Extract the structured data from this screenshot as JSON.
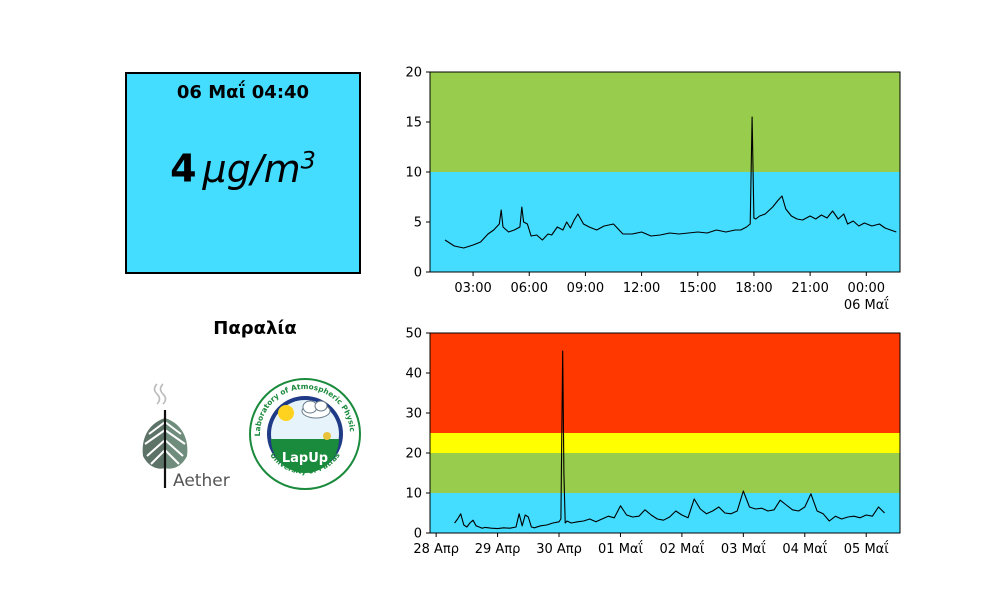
{
  "reading": {
    "timestamp": "06 Μαΐ 04:40",
    "value": "4",
    "unit_base": "μg/m",
    "unit_exp": "3",
    "box_color": "#44dcff"
  },
  "station": {
    "name": "Παραλία"
  },
  "logos": {
    "aether": "Aether",
    "lapup_center": "LapUp",
    "lapup_top_ring": "Laboratory of Atmospheric Physics",
    "lapup_bottom_ring": "University of Patras"
  },
  "colors": {
    "band_blue": "#44dcff",
    "band_green": "#98cc4c",
    "band_yellow": "#ffff00",
    "band_red": "#ff3800",
    "line": "#000000"
  },
  "chart_data": [
    {
      "type": "line",
      "id": "last-24h",
      "ylim": [
        0,
        20
      ],
      "yticks": [
        0,
        5,
        10,
        15,
        20
      ],
      "bands": [
        {
          "from": 0,
          "to": 10,
          "color": "#44dcff"
        },
        {
          "from": 10,
          "to": 20,
          "color": "#98cc4c"
        }
      ],
      "xlim": [
        0.7,
        25.8
      ],
      "xticks": [
        {
          "x": 3,
          "label": "03:00"
        },
        {
          "x": 6,
          "label": "06:00"
        },
        {
          "x": 9,
          "label": "09:00"
        },
        {
          "x": 12,
          "label": "12:00"
        },
        {
          "x": 15,
          "label": "15:00"
        },
        {
          "x": 18,
          "label": "18:00"
        },
        {
          "x": 21,
          "label": "21:00"
        },
        {
          "x": 24,
          "label": "00:00",
          "sub": "06 Μαΐ"
        }
      ],
      "series": [
        {
          "x": [
            1.5,
            2.0,
            2.5,
            3.0,
            3.4,
            3.8,
            4.1,
            4.4,
            4.5,
            4.6,
            4.9,
            5.2,
            5.5,
            5.6,
            5.7,
            5.9,
            6.1,
            6.4,
            6.7,
            7.0,
            7.2,
            7.5,
            7.8,
            8.0,
            8.2,
            8.4,
            8.6,
            8.9,
            9.2,
            9.6,
            10.0,
            10.5,
            11.0,
            11.5,
            12.0,
            12.5,
            13.0,
            13.5,
            14.0,
            14.5,
            15.0,
            15.5,
            16.0,
            16.5,
            17.0,
            17.3,
            17.6,
            17.8,
            17.9,
            18.0,
            18.1,
            18.3,
            18.6,
            19.0,
            19.3,
            19.5,
            19.7,
            20.0,
            20.3,
            20.6,
            21.0,
            21.3,
            21.6,
            21.9,
            22.2,
            22.5,
            22.8,
            23.0,
            23.3,
            23.6,
            23.9,
            24.3,
            24.7,
            25.0,
            25.3,
            25.6
          ],
          "y": [
            3.2,
            2.6,
            2.4,
            2.7,
            3.0,
            3.8,
            4.2,
            4.8,
            6.2,
            4.5,
            4.0,
            4.2,
            4.5,
            6.5,
            5.0,
            4.8,
            3.6,
            3.7,
            3.2,
            3.8,
            3.7,
            4.5,
            4.2,
            5.0,
            4.4,
            5.2,
            5.8,
            4.8,
            4.5,
            4.2,
            4.6,
            4.8,
            3.8,
            3.8,
            4.0,
            3.6,
            3.7,
            3.9,
            3.8,
            3.9,
            4.0,
            3.9,
            4.2,
            4.0,
            4.2,
            4.2,
            4.5,
            4.8,
            15.5,
            5.4,
            5.3,
            5.6,
            5.8,
            6.5,
            7.2,
            7.6,
            6.3,
            5.6,
            5.3,
            5.2,
            5.6,
            5.3,
            5.7,
            5.4,
            6.1,
            5.3,
            5.8,
            4.8,
            5.1,
            4.6,
            4.9,
            4.6,
            4.8,
            4.4,
            4.2,
            4.0
          ]
        }
      ]
    },
    {
      "type": "line",
      "id": "last-week",
      "ylim": [
        0,
        50
      ],
      "yticks": [
        0,
        10,
        20,
        30,
        40,
        50
      ],
      "bands": [
        {
          "from": 0,
          "to": 10,
          "color": "#44dcff"
        },
        {
          "from": 10,
          "to": 20,
          "color": "#98cc4c"
        },
        {
          "from": 20,
          "to": 25,
          "color": "#ffff00"
        },
        {
          "from": 25,
          "to": 50,
          "color": "#ff3800"
        }
      ],
      "xlim": [
        -0.1,
        7.55
      ],
      "xticks": [
        {
          "x": 0,
          "label": "28 Απρ"
        },
        {
          "x": 1,
          "label": "29 Απρ"
        },
        {
          "x": 2,
          "label": "30 Απρ"
        },
        {
          "x": 3,
          "label": "01 Μαΐ"
        },
        {
          "x": 4,
          "label": "02 Μαΐ"
        },
        {
          "x": 5,
          "label": "03 Μαΐ"
        },
        {
          "x": 6,
          "label": "04 Μαΐ"
        },
        {
          "x": 7,
          "label": "05 Μαΐ"
        }
      ],
      "series": [
        {
          "x": [
            0.3,
            0.35,
            0.4,
            0.45,
            0.5,
            0.55,
            0.6,
            0.65,
            0.7,
            0.75,
            0.8,
            0.9,
            1.0,
            1.1,
            1.2,
            1.3,
            1.35,
            1.4,
            1.45,
            1.5,
            1.55,
            1.6,
            1.7,
            1.8,
            1.9,
            2.0,
            2.03,
            2.06,
            2.08,
            2.1,
            2.13,
            2.2,
            2.3,
            2.4,
            2.5,
            2.6,
            2.7,
            2.8,
            2.9,
            3.0,
            3.1,
            3.2,
            3.3,
            3.4,
            3.5,
            3.6,
            3.7,
            3.8,
            3.9,
            4.0,
            4.1,
            4.2,
            4.3,
            4.4,
            4.5,
            4.6,
            4.7,
            4.8,
            4.9,
            5.0,
            5.1,
            5.2,
            5.3,
            5.4,
            5.5,
            5.6,
            5.7,
            5.8,
            5.9,
            6.0,
            6.1,
            6.2,
            6.3,
            6.4,
            6.5,
            6.6,
            6.7,
            6.8,
            6.9,
            7.0,
            7.1,
            7.2,
            7.3
          ],
          "y": [
            2.5,
            3.5,
            4.8,
            2.0,
            1.5,
            2.5,
            3.2,
            1.8,
            1.5,
            1.2,
            1.4,
            1.2,
            1.1,
            1.3,
            1.2,
            1.5,
            4.8,
            1.8,
            4.5,
            4.0,
            1.5,
            1.3,
            1.8,
            2.0,
            2.5,
            2.8,
            3.5,
            45.5,
            15,
            2.5,
            3.0,
            2.5,
            2.8,
            3.0,
            3.5,
            2.8,
            3.5,
            4.2,
            3.8,
            6.8,
            4.5,
            4.0,
            4.2,
            5.8,
            4.5,
            3.5,
            3.2,
            4.0,
            5.5,
            4.5,
            3.8,
            8.5,
            6.0,
            4.8,
            5.5,
            6.5,
            5.0,
            4.8,
            5.5,
            10.5,
            6.5,
            6.0,
            6.2,
            5.5,
            5.8,
            8.2,
            7.0,
            5.8,
            5.5,
            6.5,
            9.8,
            5.5,
            4.8,
            3.0,
            4.2,
            3.5,
            4.0,
            4.2,
            3.8,
            4.5,
            4.2,
            6.5,
            5.0
          ]
        }
      ]
    }
  ]
}
